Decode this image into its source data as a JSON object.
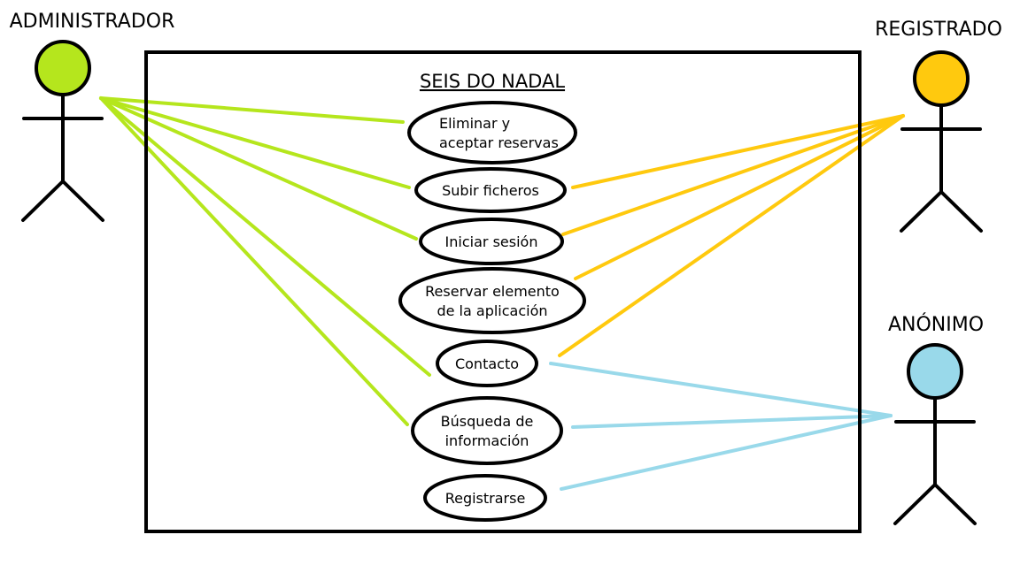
{
  "system": {
    "title": "SEIS DO NADAL"
  },
  "actors": [
    {
      "id": "administrador",
      "name": "ADMINISTRADOR",
      "color": "#b5e61d"
    },
    {
      "id": "registrado",
      "name": "REGISTRADO",
      "color": "#ffc90e"
    },
    {
      "id": "anonimo",
      "name": "ANÓNIMO",
      "color": "#99d9ea"
    }
  ],
  "use_cases": [
    {
      "id": "eliminar",
      "lines": [
        "Eliminar y",
        "aceptar reservas"
      ]
    },
    {
      "id": "subir",
      "lines": [
        "Subir ficheros"
      ]
    },
    {
      "id": "iniciar",
      "lines": [
        "Iniciar sesión"
      ]
    },
    {
      "id": "reservar",
      "lines": [
        "Reservar elemento",
        "de la aplicación"
      ]
    },
    {
      "id": "contacto",
      "lines": [
        "Contacto"
      ]
    },
    {
      "id": "busqueda",
      "lines": [
        "Búsqueda de",
        "información"
      ]
    },
    {
      "id": "registrarse",
      "lines": [
        "Registrarse"
      ]
    }
  ],
  "associations": [
    {
      "actor": "administrador",
      "use_case": "eliminar"
    },
    {
      "actor": "administrador",
      "use_case": "subir"
    },
    {
      "actor": "administrador",
      "use_case": "iniciar"
    },
    {
      "actor": "administrador",
      "use_case": "contacto"
    },
    {
      "actor": "administrador",
      "use_case": "busqueda"
    },
    {
      "actor": "registrado",
      "use_case": "subir"
    },
    {
      "actor": "registrado",
      "use_case": "iniciar"
    },
    {
      "actor": "registrado",
      "use_case": "reservar"
    },
    {
      "actor": "registrado",
      "use_case": "contacto"
    },
    {
      "actor": "anonimo",
      "use_case": "contacto"
    },
    {
      "actor": "anonimo",
      "use_case": "busqueda"
    },
    {
      "actor": "anonimo",
      "use_case": "registrarse"
    }
  ]
}
